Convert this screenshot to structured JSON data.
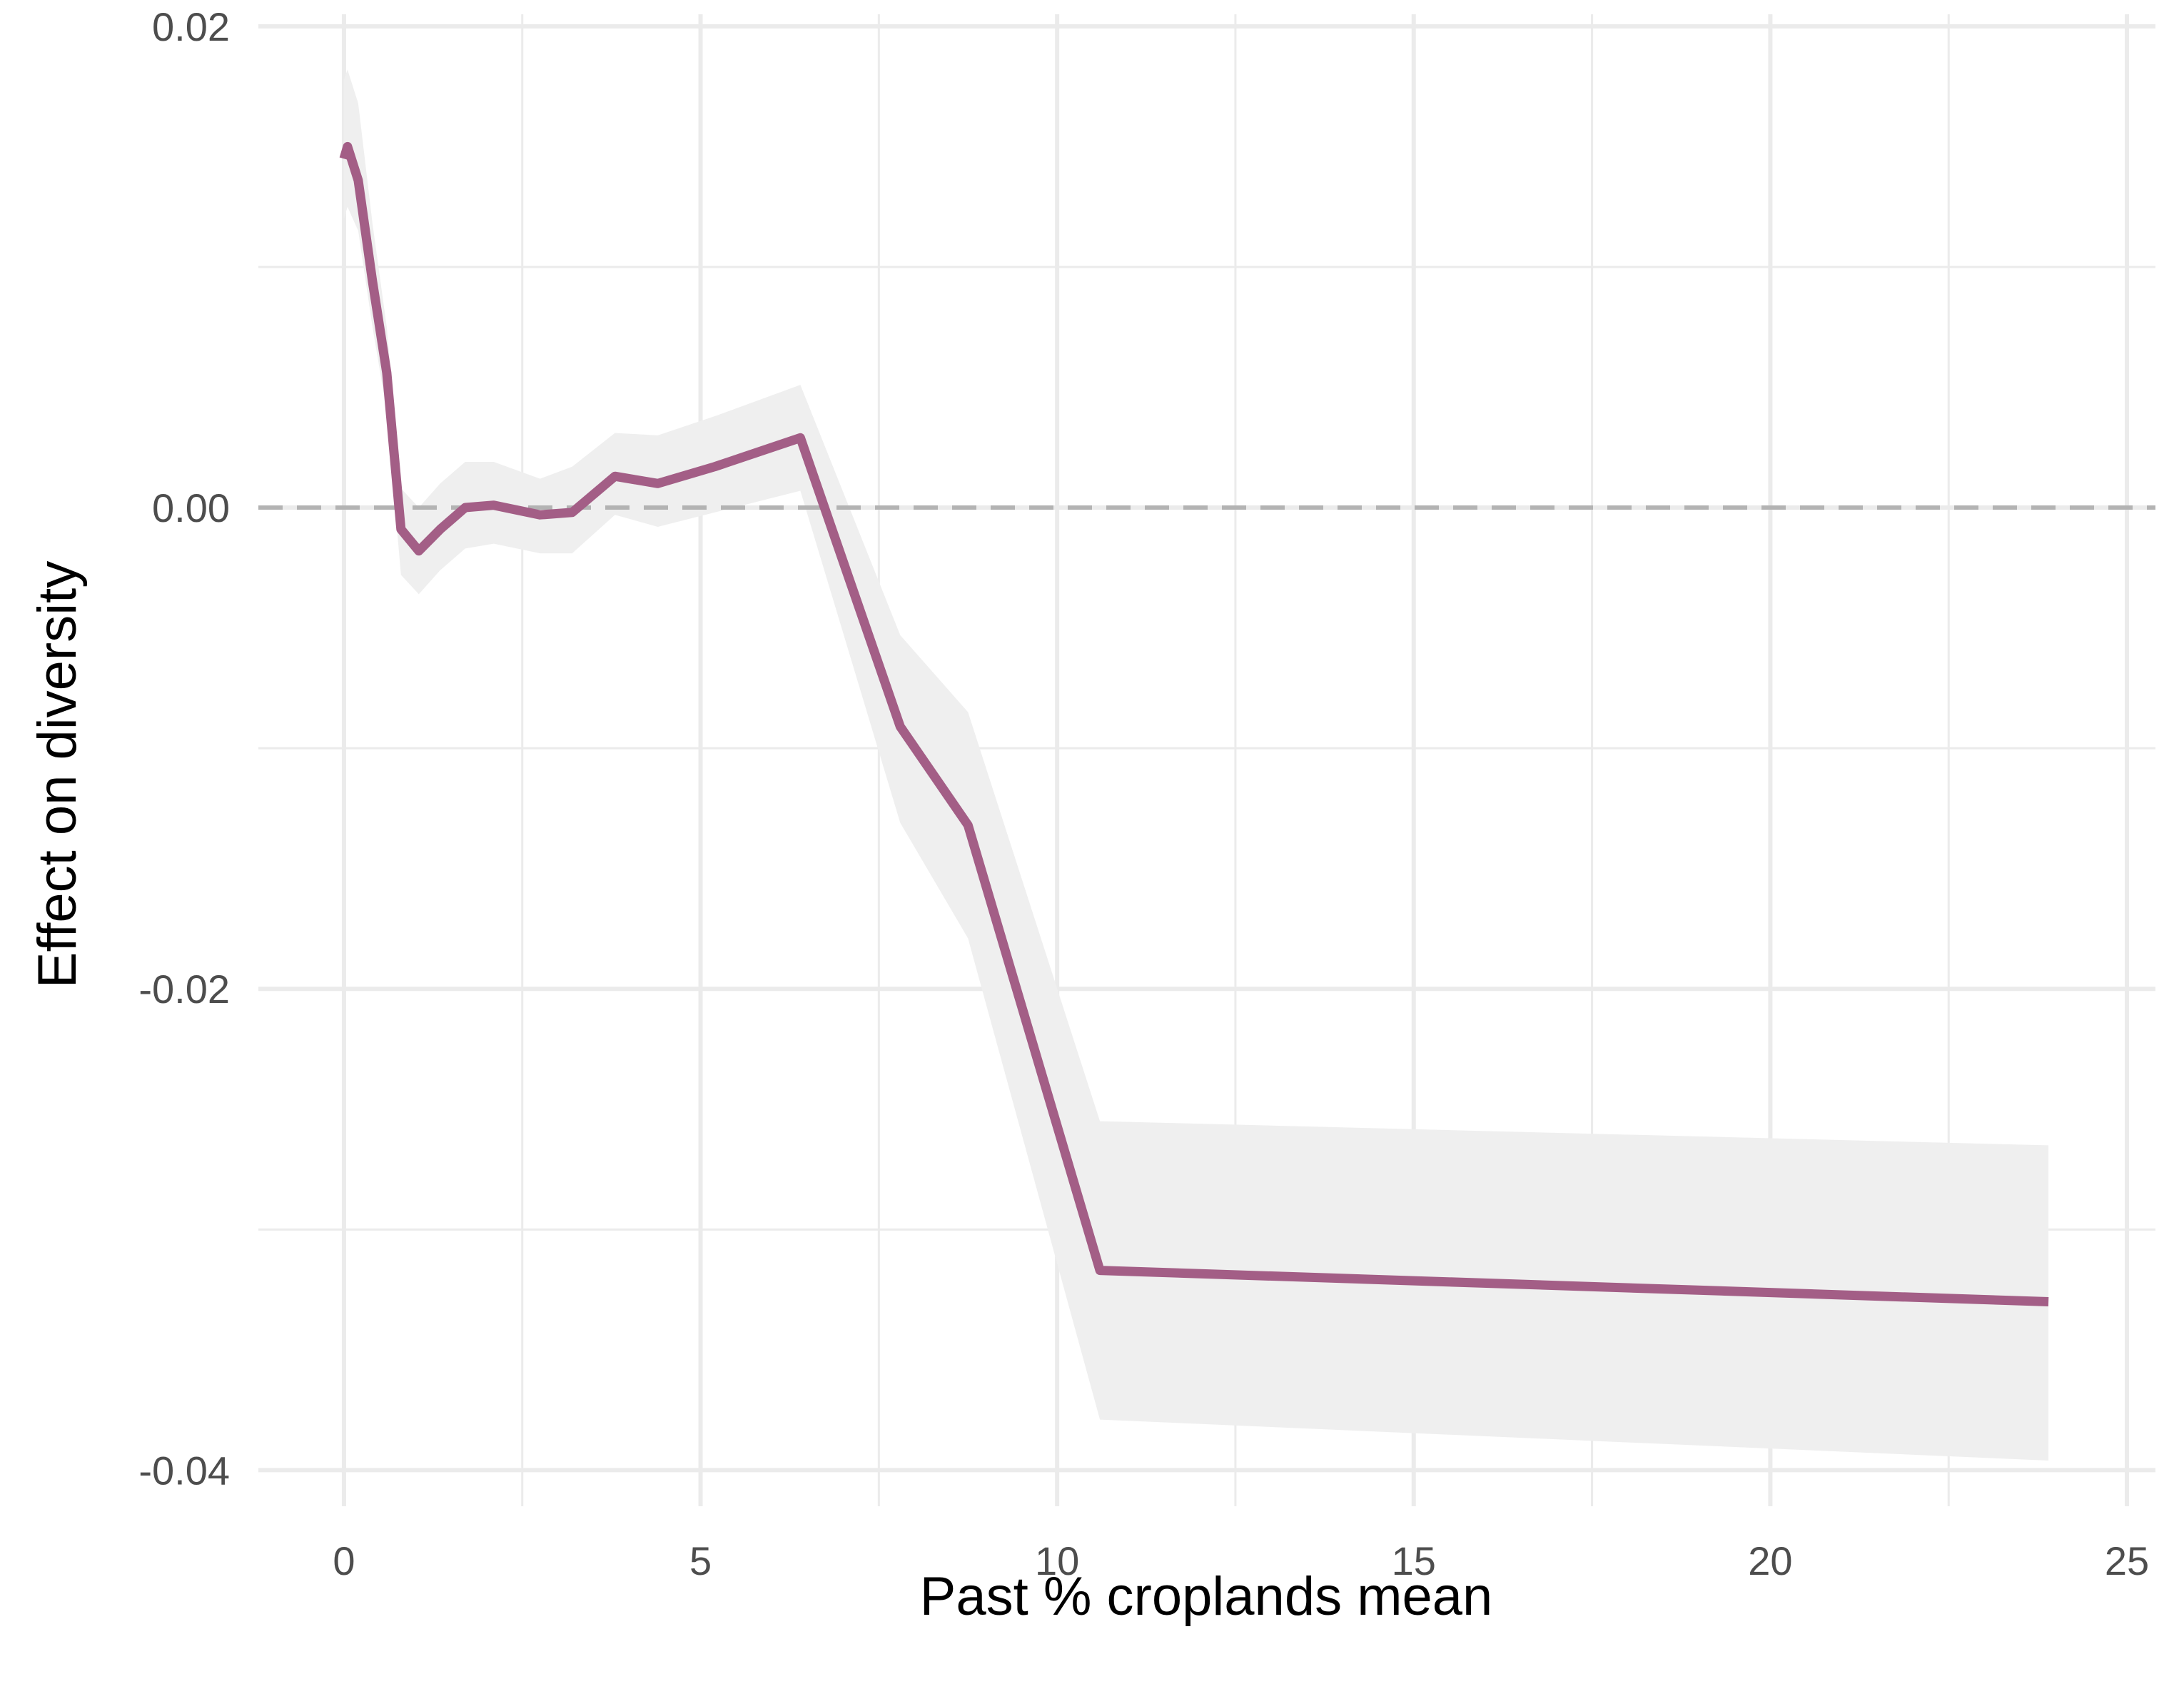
{
  "chart_data": {
    "type": "line",
    "xlabel": "Past % croplands mean",
    "ylabel": "Effect on diversity",
    "xlim": [
      -1.2,
      25.4
    ],
    "ylim": [
      -0.0415,
      0.0205
    ],
    "x_ticks": [
      0,
      5,
      10,
      15,
      20,
      25
    ],
    "x_tick_labels": [
      "0",
      "5",
      "10",
      "15",
      "20",
      "25"
    ],
    "y_ticks": [
      0.02,
      0.0,
      -0.02,
      -0.04
    ],
    "y_tick_labels": [
      "0.02",
      "0.00",
      "-0.02",
      "-0.04"
    ],
    "x_minor_ticks": [
      2.5,
      7.5,
      12.5,
      17.5,
      22.5
    ],
    "y_minor_ticks": [
      0.01,
      -0.01,
      -0.03
    ],
    "grid": true,
    "reference_line": {
      "y": 0.0,
      "style": "dashed",
      "color": "#b3b3b3"
    },
    "series": [
      {
        "color": "#a35e86",
        "x": [
          0.0,
          0.05,
          0.2,
          0.4,
          0.6,
          0.8,
          1.05,
          1.35,
          1.7,
          2.1,
          2.75,
          3.2,
          3.8,
          4.4,
          5.2,
          6.4,
          7.8,
          8.75,
          10.6,
          23.9
        ],
        "y": [
          0.0145,
          0.015,
          0.0136,
          0.0094,
          0.0056,
          -0.0009,
          -0.0018,
          -0.0009,
          0.0,
          0.0001,
          -0.0003,
          -0.0002,
          0.0013,
          0.001,
          0.0017,
          0.0029,
          -0.0091,
          -0.0132,
          -0.0317,
          -0.033
        ],
        "lower": [
          0.012,
          0.0125,
          0.0115,
          0.0075,
          0.004,
          -0.0028,
          -0.0036,
          -0.0026,
          -0.0017,
          -0.0015,
          -0.0019,
          -0.0019,
          -0.0003,
          -0.0008,
          -0.0002,
          0.0007,
          -0.0131,
          -0.0179,
          -0.0379,
          -0.0396
        ],
        "upper": [
          0.0178,
          0.0182,
          0.0168,
          0.0118,
          0.0075,
          0.0008,
          0.0,
          0.001,
          0.0019,
          0.0019,
          0.0012,
          0.0017,
          0.0031,
          0.003,
          0.0038,
          0.0051,
          -0.0053,
          -0.0085,
          -0.0255,
          -0.0265
        ],
        "band_color": "#efefef"
      }
    ]
  }
}
